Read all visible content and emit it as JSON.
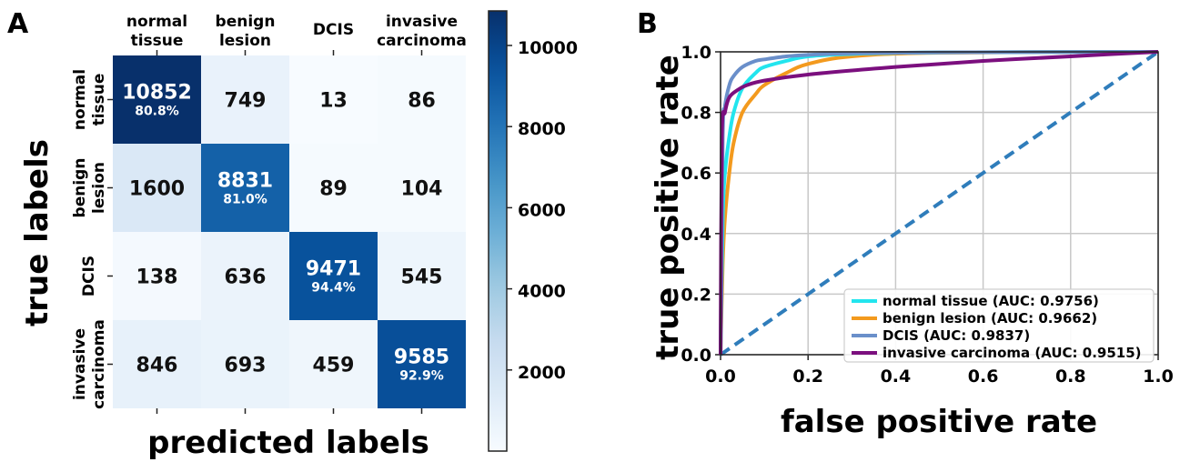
{
  "panels": {
    "a": "A",
    "b": "B"
  },
  "chart_data": [
    {
      "type": "heatmap",
      "xlabel": "predicted labels",
      "ylabel": "true labels",
      "categories": [
        [
          "normal",
          "tissue"
        ],
        [
          "benign",
          "lesion"
        ],
        [
          "DCIS"
        ],
        [
          "invasive",
          "carcinoma"
        ]
      ],
      "matrix": [
        [
          10852,
          749,
          13,
          86
        ],
        [
          1600,
          8831,
          89,
          104
        ],
        [
          138,
          636,
          9471,
          545
        ],
        [
          846,
          693,
          459,
          9585
        ]
      ],
      "diagonal_percent": [
        "80.8%",
        "81.0%",
        "94.4%",
        "92.9%"
      ],
      "colorbar": {
        "min": 0,
        "max": 10852,
        "ticks": [
          2000,
          4000,
          6000,
          8000,
          10000
        ],
        "colormap": "Blues"
      }
    },
    {
      "type": "line",
      "xlabel": "false positive rate",
      "ylabel": "true positive rate",
      "xlim": [
        0,
        1
      ],
      "ylim": [
        0,
        1
      ],
      "xticks": [
        "0.0",
        "0.2",
        "0.4",
        "0.6",
        "0.8",
        "1.0"
      ],
      "yticks": [
        "0.0",
        "0.2",
        "0.4",
        "0.6",
        "0.8",
        "1.0"
      ],
      "grid": true,
      "legend_position": "lower-right",
      "series": [
        {
          "name": "normal tissue (AUC: 0.9756)",
          "color": "#22e5ee",
          "x": [
            0,
            0.005,
            0.01,
            0.02,
            0.03,
            0.05,
            0.08,
            0.1,
            0.15,
            0.2,
            0.3,
            0.5,
            1.0
          ],
          "y": [
            0,
            0.45,
            0.6,
            0.72,
            0.8,
            0.88,
            0.93,
            0.95,
            0.97,
            0.985,
            0.993,
            0.998,
            1.0
          ]
        },
        {
          "name": "benign lesion (AUC: 0.9662)",
          "color": "#f39a1e",
          "x": [
            0,
            0.005,
            0.01,
            0.02,
            0.03,
            0.05,
            0.08,
            0.1,
            0.15,
            0.2,
            0.3,
            0.5,
            1.0
          ],
          "y": [
            0,
            0.3,
            0.45,
            0.6,
            0.7,
            0.8,
            0.86,
            0.89,
            0.93,
            0.96,
            0.985,
            0.997,
            1.0
          ]
        },
        {
          "name": "DCIS (AUC: 0.9837)",
          "color": "#6a8fca",
          "x": [
            0,
            0.005,
            0.01,
            0.02,
            0.03,
            0.05,
            0.08,
            0.1,
            0.15,
            0.2,
            0.3,
            0.5,
            1.0
          ],
          "y": [
            0,
            0.72,
            0.82,
            0.89,
            0.92,
            0.95,
            0.97,
            0.975,
            0.985,
            0.99,
            0.995,
            0.998,
            1.0
          ]
        },
        {
          "name": "invasive carcinoma (AUC: 0.9515)",
          "color": "#7b0f7e",
          "x": [
            0,
            0.003,
            0.01,
            0.02,
            0.04,
            0.06,
            0.1,
            0.2,
            0.4,
            0.6,
            0.8,
            0.9,
            1.0
          ],
          "y": [
            0,
            0.72,
            0.8,
            0.85,
            0.875,
            0.89,
            0.905,
            0.925,
            0.95,
            0.97,
            0.985,
            0.993,
            1.0
          ]
        },
        {
          "name": "",
          "color": "#2f7dbb",
          "dashed": true,
          "x": [
            0,
            1
          ],
          "y": [
            0,
            1
          ]
        }
      ]
    }
  ]
}
